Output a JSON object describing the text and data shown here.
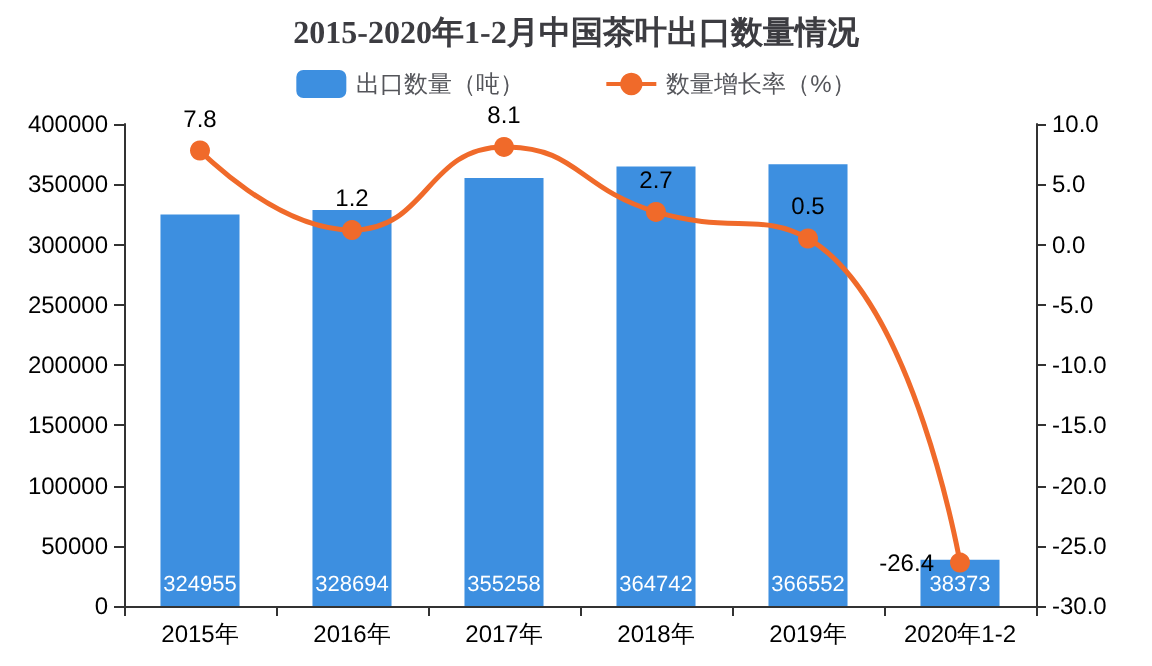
{
  "chart_data": {
    "type": "bar",
    "title": "2015-2020年1-2月中国茶叶出口数量情况",
    "categories": [
      "2015年",
      "2016年",
      "2017年",
      "2018年",
      "2019年",
      "2020年1-2"
    ],
    "series": [
      {
        "name": "出口数量（吨）",
        "color": "#3d8fe0",
        "values": [
          324955,
          328694,
          355258,
          364742,
          366552,
          38373
        ]
      },
      {
        "name": "数量增长率（%）",
        "type": "line",
        "axis": "y2",
        "color": "#f06a2a",
        "values": [
          7.8,
          1.2,
          8.1,
          2.7,
          0.5,
          -26.4
        ]
      }
    ],
    "ylim": [
      0,
      400000
    ],
    "yticks": [
      0,
      50000,
      100000,
      150000,
      200000,
      250000,
      300000,
      350000,
      400000
    ],
    "y2lim": [
      -30,
      10
    ],
    "y2ticks": [
      {
        "value": -30,
        "label": "-30.0"
      },
      {
        "value": -25,
        "label": "-25.0"
      },
      {
        "value": -20,
        "label": "-20.0"
      },
      {
        "value": -15,
        "label": "-15.0"
      },
      {
        "value": -10,
        "label": "-10.0"
      },
      {
        "value": -5,
        "label": "-5.0"
      },
      {
        "value": 0,
        "label": "0.0"
      },
      {
        "value": 5,
        "label": "5.0"
      },
      {
        "value": 10,
        "label": "10.0"
      }
    ],
    "data_labels": true,
    "legend": "top",
    "marker": "circle",
    "grid": false
  }
}
